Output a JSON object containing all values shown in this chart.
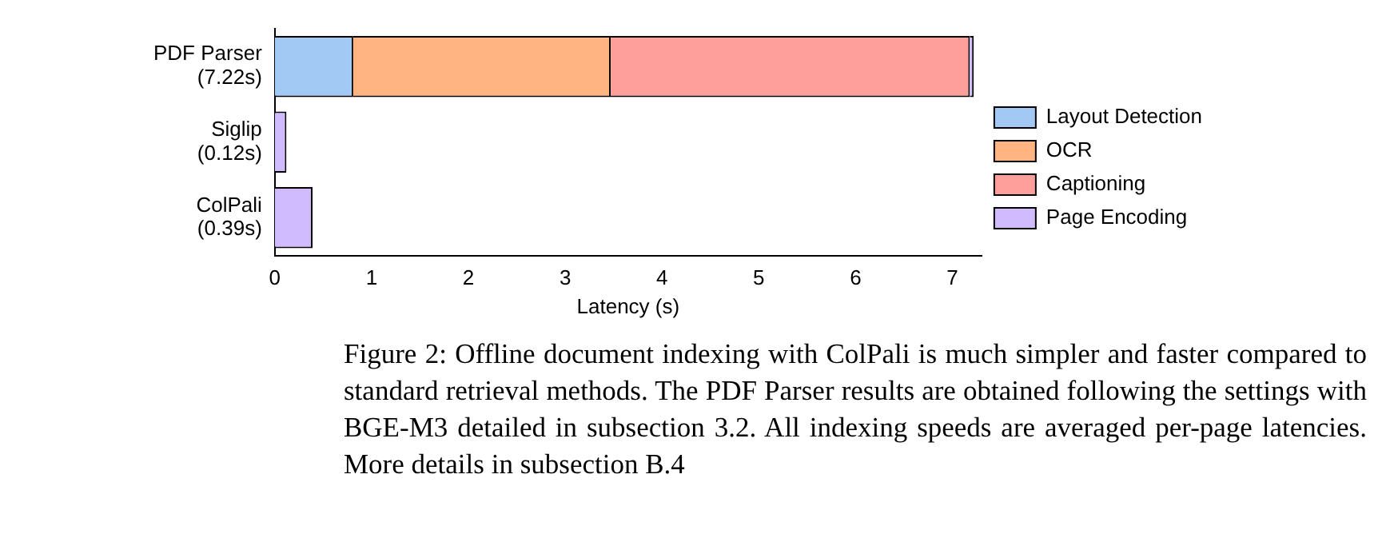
{
  "chart_data": {
    "type": "bar",
    "orientation": "horizontal",
    "stacked": true,
    "xlabel": "Latency (s)",
    "categories": [
      "PDF Parser\n(7.22s)",
      "Siglip\n(0.12s)",
      "ColPali\n(0.39s)"
    ],
    "series": [
      {
        "name": "Layout Detection",
        "color": "#a1c9f4",
        "values": [
          0.81,
          null,
          null
        ]
      },
      {
        "name": "OCR",
        "color": "#ffb482",
        "values": [
          2.66,
          null,
          null
        ]
      },
      {
        "name": "Captioning",
        "color": "#ff9f9b",
        "values": [
          3.71,
          null,
          null
        ]
      },
      {
        "name": "Page Encoding",
        "color": "#d0bbff",
        "values": [
          0.04,
          0.12,
          0.39
        ]
      }
    ],
    "xlim": [
      0,
      7.3
    ],
    "xticks": [
      0,
      1,
      2,
      3,
      4,
      5,
      6,
      7
    ],
    "grid": false,
    "legend": "right",
    "annotations": [
      "Figure 2: Offline document indexing with ColPali is much simpler and faster compared to standard retrieval methods. The PDF Parser results are obtained following the settings with BGE-M3 detailed in subsection 3.2. All indexing speeds are averaged per-page latencies. More details in subsection B.4"
    ]
  }
}
